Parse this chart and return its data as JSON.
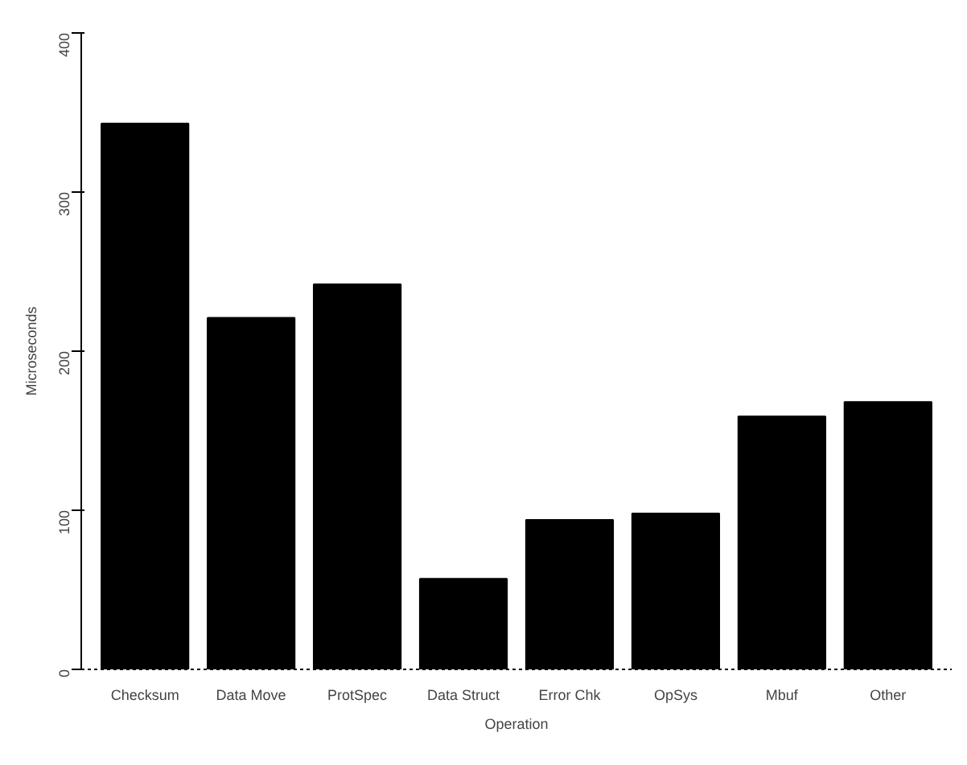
{
  "chart_data": {
    "type": "bar",
    "xlabel": "Operation",
    "ylabel": "Microseconds",
    "categories": [
      "Checksum",
      "Data Move",
      "ProtSpec",
      "Data Struct",
      "Error Chk",
      "OpSys",
      "Mbuf",
      "Other"
    ],
    "values": [
      343,
      221,
      242,
      57,
      94,
      98,
      159,
      168
    ],
    "color": "#000000",
    "ylim": [
      0,
      400
    ],
    "yticks": [
      0,
      100,
      200,
      300,
      400
    ],
    "grid": false
  }
}
